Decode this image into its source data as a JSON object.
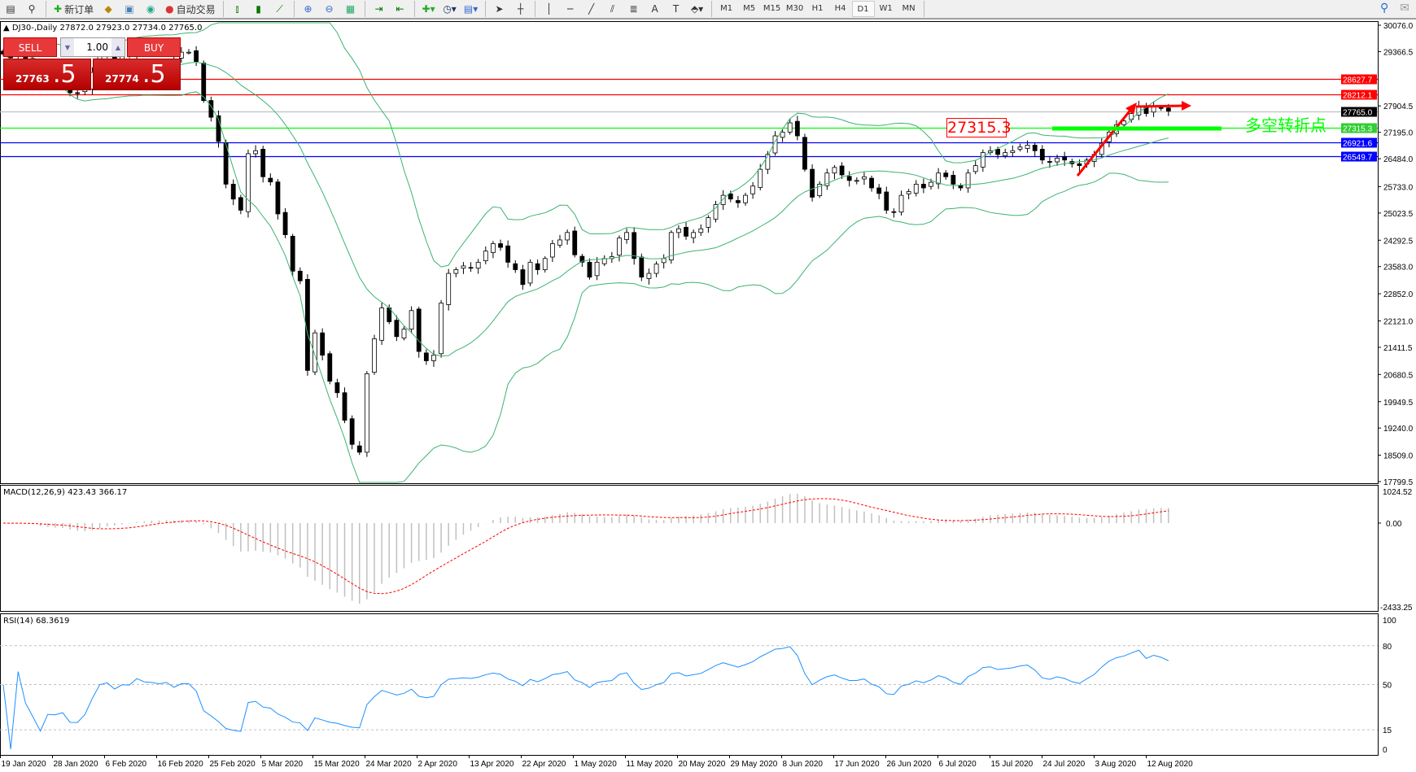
{
  "toolbar": {
    "new_order": "新订单",
    "auto_trading": "自动交易",
    "timeframes": [
      "M1",
      "M5",
      "M15",
      "M30",
      "H1",
      "H4",
      "D1",
      "W1",
      "MN"
    ],
    "active_timeframe": "D1"
  },
  "chart": {
    "symbol_line": "DJ30-,Daily  27872.0 27923.0 27734.0 27765.0"
  },
  "one_click": {
    "sell_label": "SELL",
    "buy_label": "BUY",
    "lot": "1.00",
    "sell_small": "27763",
    "sell_big": ".5",
    "buy_small": "27774",
    "buy_big": ".5"
  },
  "annotations": {
    "price_box": "27315.3",
    "note": "多空转折点"
  },
  "colors": {
    "bull_candle": "#ffffff",
    "bear_candle": "#000000",
    "bollinger": "#3cb371",
    "macd_signal": "#ff0000",
    "macd_hist": "#c0c0c0",
    "rsi": "#1e90ff",
    "line_red": "#ff0000",
    "line_blue": "#0000ff",
    "line_green": "#00ff00",
    "line_gray": "#c0c0c0"
  },
  "chart_data": {
    "type": "candlestick",
    "price_axis": {
      "max": 30076.0,
      "min": 17799.5,
      "ticks": [
        "30076.0",
        "29366.5",
        "27904.5",
        "27195.0",
        "26484.0",
        "25733.0",
        "25023.5",
        "24292.5",
        "23583.0",
        "22852.0",
        "22121.0",
        "21411.5",
        "20680.5",
        "19949.5",
        "19240.0",
        "18509.0",
        "17799.5"
      ]
    },
    "horizontal_lines": [
      {
        "price": 28627.7,
        "label": "28627.7",
        "color": "#ff0000"
      },
      {
        "price": 28212.1,
        "label": "28212.1",
        "color": "#ff0000"
      },
      {
        "price": 27765.0,
        "label": "27765.0",
        "color": "#000000",
        "line": "#c0c0c0"
      },
      {
        "price": 27315.3,
        "label": "27315.3",
        "color": "#32cd32",
        "line": "#00ff00"
      },
      {
        "price": 26921.6,
        "label": "26921.6",
        "color": "#0000ff"
      },
      {
        "price": 26549.7,
        "label": "26549.7",
        "color": "#0000ff"
      }
    ],
    "date_labels": [
      "19 Jan 2020",
      "28 Jan 2020",
      "6 Feb 2020",
      "16 Feb 2020",
      "25 Feb 2020",
      "5 Mar 2020",
      "15 Mar 2020",
      "24 Mar 2020",
      "2 Apr 2020",
      "13 Apr 2020",
      "22 Apr 2020",
      "1 May 2020",
      "11 May 2020",
      "20 May 2020",
      "29 May 2020",
      "8 Jun 2020",
      "17 Jun 2020",
      "26 Jun 2020",
      "6 Jul 2020",
      "15 Jul 2020",
      "24 Jul 2020",
      "3 Aug 2020",
      "12 Aug 2020"
    ],
    "close": [
      29300,
      29200,
      29350,
      29180,
      29000,
      28530,
      28720,
      28700,
      28730,
      28260,
      28250,
      28400,
      28800,
      29290,
      29380,
      29100,
      29280,
      29270,
      29550,
      29420,
      29400,
      29350,
      29400,
      29230,
      29350,
      29350,
      29100,
      28050,
      27600,
      26950,
      25800,
      25400,
      25100,
      26620,
      26700,
      26000,
      25860,
      25000,
      24440,
      23460,
      23200,
      20790,
      21800,
      21200,
      20500,
      20190,
      19450,
      18800,
      18590,
      20700,
      21640,
      22470,
      22100,
      21700,
      21900,
      22400,
      21300,
      21050,
      21200,
      22600,
      23400,
      23500,
      23600,
      23540,
      23700,
      24000,
      24200,
      24100,
      23700,
      23500,
      23100,
      23700,
      23500,
      23800,
      24200,
      24300,
      24500,
      23900,
      23700,
      23300,
      23700,
      23800,
      23850,
      24350,
      24500,
      23800,
      23300,
      23400,
      23650,
      23800,
      24500,
      24600,
      24400,
      24500,
      24600,
      24900,
      25250,
      25500,
      25400,
      25300,
      25500,
      25750,
      26200,
      26600,
      27100,
      27200,
      27450,
      27100,
      26200,
      25450,
      25800,
      26100,
      26250,
      26050,
      25900,
      25900,
      26000,
      25700,
      25550,
      25100,
      25050,
      25500,
      25600,
      25800,
      25700,
      25850,
      26100,
      26000,
      25800,
      25700,
      26100,
      26300,
      26650,
      26700,
      26600,
      26650,
      26700,
      26800,
      26850,
      26700,
      26450,
      26400,
      26500,
      26450,
      26350,
      26300,
      26450,
      26600,
      26900,
      27200,
      27400,
      27500,
      27700,
      27900,
      27700,
      27900,
      27850,
      27765
    ],
    "macd": {
      "label": "MACD(12,26,9) 423.43 366.17",
      "max_label": "1024.52",
      "zero_label": "0.00",
      "min_label": "-2433.25",
      "max": 1024.52,
      "min": -2433.25
    },
    "rsi": {
      "label": "RSI(14) 68.3619",
      "levels": [
        "100",
        "80",
        "50",
        "15",
        "0"
      ]
    }
  }
}
